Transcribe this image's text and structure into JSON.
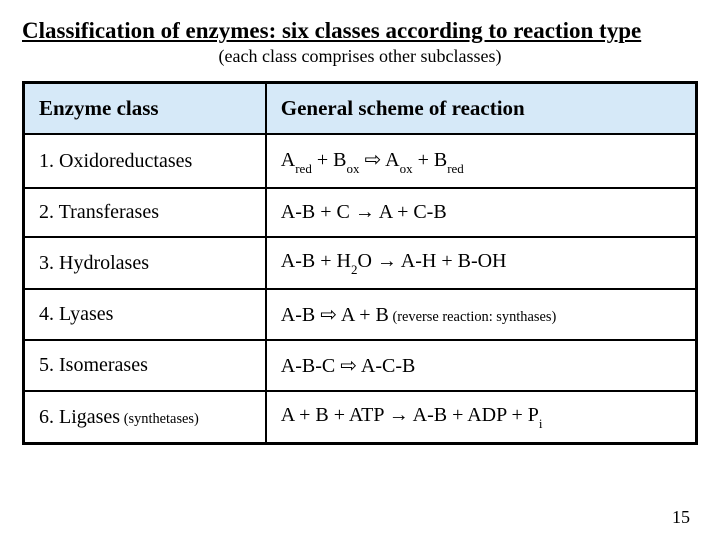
{
  "title": "Classification of enzymes: six classes according to reaction type",
  "subtitle": "(each class comprises other subclasses)",
  "page_number": "15",
  "header_bg": "#d6e9f8",
  "border_color": "#000000",
  "columns": [
    "Enzyme class",
    "General scheme of reaction"
  ],
  "rows": [
    {
      "class_num": "1.",
      "class_name": "Oxidoreductases",
      "class_note": "",
      "reaction_parts": [
        {
          "t": "A"
        },
        {
          "t": "red",
          "sub": true
        },
        {
          "t": " + B"
        },
        {
          "t": "ox",
          "sub": true
        },
        {
          "t": "   "
        },
        {
          "t": "⇨",
          "arrow": true
        },
        {
          "t": "   A"
        },
        {
          "t": "ox",
          "sub": true
        },
        {
          "t": " + B"
        },
        {
          "t": "red",
          "sub": true
        }
      ],
      "reaction_note": ""
    },
    {
      "class_num": "2.",
      "class_name": "Transferases",
      "class_note": "",
      "reaction_parts": [
        {
          "t": "A-B + C   →   A + C-B"
        }
      ],
      "reaction_note": ""
    },
    {
      "class_num": "3.",
      "class_name": "Hydrolases",
      "class_note": "",
      "reaction_parts": [
        {
          "t": "A-B  + H"
        },
        {
          "t": "2",
          "sub": true
        },
        {
          "t": "O   →   A-H  +  B-OH"
        }
      ],
      "reaction_note": ""
    },
    {
      "class_num": "4.",
      "class_name": "Lyases",
      "class_note": "",
      "reaction_parts": [
        {
          "t": "A-B   "
        },
        {
          "t": "⇨",
          "arrow": true
        },
        {
          "t": "  A  + B"
        }
      ],
      "reaction_note": "(reverse reaction: synthases)"
    },
    {
      "class_num": "5.",
      "class_name": "Isomerases",
      "class_note": "",
      "reaction_parts": [
        {
          "t": "A-B-C  "
        },
        {
          "t": "⇨",
          "arrow": true
        },
        {
          "t": "  A-C-B"
        }
      ],
      "reaction_note": ""
    },
    {
      "class_num": "6.",
      "class_name": "Ligases",
      "class_note": "(synthetases)",
      "reaction_parts": [
        {
          "t": "A + B + ATP   →   A-B  + ADP  + P"
        },
        {
          "t": "i",
          "sub": true
        }
      ],
      "reaction_note": ""
    }
  ]
}
